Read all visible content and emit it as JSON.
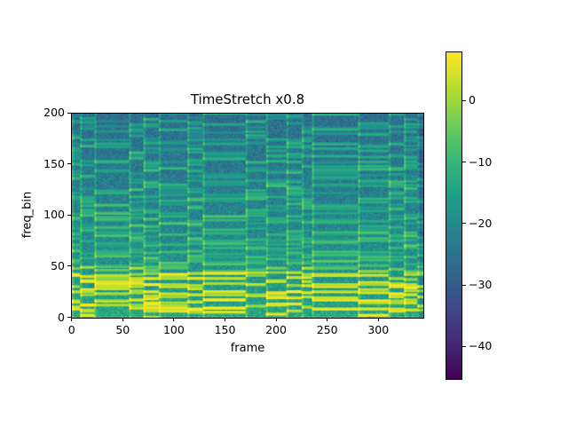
{
  "chart_data": {
    "type": "heatmap",
    "title": "TimeStretch x0.8",
    "xlabel": "frame",
    "ylabel": "freq_bin",
    "xlim": [
      0,
      344
    ],
    "ylim": [
      0,
      200
    ],
    "xticks": [
      "0",
      "50",
      "100",
      "150",
      "200",
      "250",
      "300"
    ],
    "xtick_values": [
      0,
      50,
      100,
      150,
      200,
      250,
      300
    ],
    "yticks": [
      "0",
      "50",
      "100",
      "150",
      "200"
    ],
    "ytick_values": [
      0,
      50,
      100,
      150,
      200
    ],
    "colormap": "viridis",
    "colorbar": {
      "range": [
        -45.3,
        8
      ],
      "ticks": [
        "0",
        "−10",
        "−20",
        "−30",
        "−40"
      ],
      "tick_values": [
        0,
        -10,
        -20,
        -30,
        -40
      ]
    },
    "grid": false,
    "note_segment_boundaries": [
      8,
      22,
      56,
      70,
      85,
      113,
      128,
      170,
      190,
      210,
      225,
      235,
      280,
      310,
      325,
      338
    ]
  }
}
